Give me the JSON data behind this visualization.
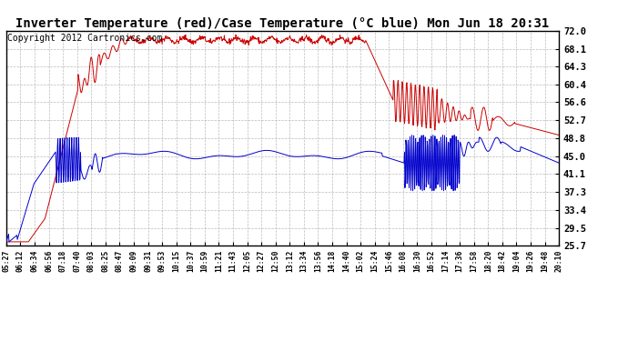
{
  "title": "Inverter Temperature (red)/Case Temperature (°C blue) Mon Jun 18 20:31",
  "copyright": "Copyright 2012 Cartronics.com",
  "ylim": [
    25.7,
    72.0
  ],
  "yticks": [
    72.0,
    68.1,
    64.3,
    60.4,
    56.6,
    52.7,
    48.8,
    45.0,
    41.1,
    37.3,
    33.4,
    29.5,
    25.7
  ],
  "xtick_labels": [
    "05:27",
    "06:12",
    "06:34",
    "06:56",
    "07:18",
    "07:40",
    "08:03",
    "08:25",
    "08:47",
    "09:09",
    "09:31",
    "09:53",
    "10:15",
    "10:37",
    "10:59",
    "11:21",
    "11:43",
    "12:05",
    "12:27",
    "12:50",
    "13:12",
    "13:34",
    "13:56",
    "14:18",
    "14:40",
    "15:02",
    "15:24",
    "15:46",
    "16:08",
    "16:30",
    "16:52",
    "17:14",
    "17:36",
    "17:58",
    "18:20",
    "18:42",
    "19:04",
    "19:26",
    "19:48",
    "20:10"
  ],
  "bg_color": "#ffffff",
  "grid_color": "#aaaaaa",
  "red_color": "#cc0000",
  "blue_color": "#0000cc",
  "title_fontsize": 10,
  "copyright_fontsize": 7,
  "figsize": [
    6.9,
    3.75
  ],
  "dpi": 100
}
